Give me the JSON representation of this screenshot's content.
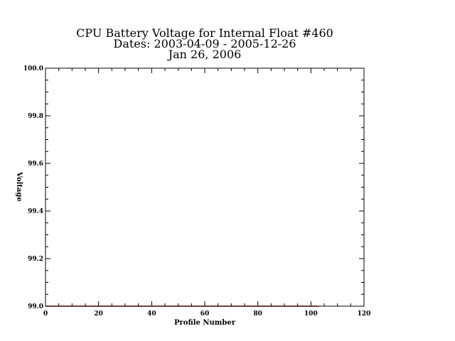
{
  "chart_data": {
    "type": "line",
    "title_lines": [
      "CPU Battery Voltage for Internal Float #460",
      "Dates:  2003-04-09 -  2005-12-26",
      "Jan 26, 2006"
    ],
    "xlabel": "Profile Number",
    "ylabel": "Voltage",
    "xlim": [
      0,
      120
    ],
    "ylim": [
      99.0,
      100.0
    ],
    "x_ticks": [
      0,
      20,
      40,
      60,
      80,
      100,
      120
    ],
    "x_tick_labels": [
      "0",
      "20",
      "40",
      "60",
      "80",
      "100",
      "120"
    ],
    "y_ticks": [
      99.0,
      99.2,
      99.4,
      99.6,
      99.8,
      100.0
    ],
    "y_tick_labels": [
      "99.0",
      "99.2",
      "99.4",
      "99.6",
      "99.8",
      "100.0"
    ],
    "x_minor_step": 5,
    "y_minor_step": 0.05,
    "grid": false,
    "series": [
      {
        "color": "#cc0000",
        "x": [
          0,
          103
        ],
        "y": [
          99.0,
          99.0
        ]
      }
    ]
  }
}
